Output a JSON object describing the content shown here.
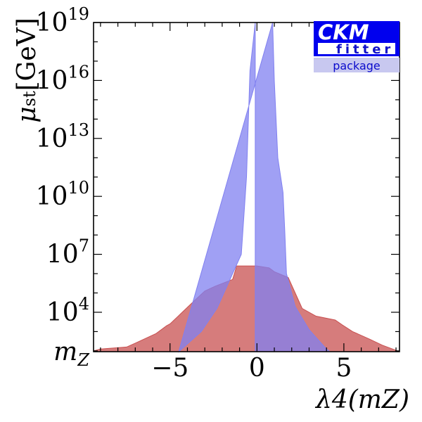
{
  "chart_data": {
    "type": "area",
    "title": "",
    "xlabel": "λ4(mZ)",
    "ylabel_main": "μ",
    "ylabel_sub": "st",
    "ylabel_unit": "[GeV]",
    "xlim": [
      -9.4,
      8.2
    ],
    "ylim": [
      1.96,
      19
    ],
    "y_scale": "log10",
    "y_is_log_exponent": true,
    "grid": false,
    "x_ticks": [
      {
        "value": -5,
        "label": "−5"
      },
      {
        "value": 0,
        "label": "0"
      },
      {
        "value": 5,
        "label": "5"
      }
    ],
    "y_ticks": [
      {
        "value": 1.96,
        "label": "m",
        "sub": "Z"
      },
      {
        "value": 4,
        "label": "10",
        "sup": "4"
      },
      {
        "value": 7,
        "label": "10",
        "sup": "7"
      },
      {
        "value": 10,
        "label": "10",
        "sup": "10"
      },
      {
        "value": 13,
        "label": "10",
        "sup": "13"
      },
      {
        "value": 16,
        "label": "10",
        "sup": "16"
      },
      {
        "value": 19,
        "label": "10",
        "sup": "19"
      }
    ],
    "series": [
      {
        "color": "#c85050",
        "opacity": 0.75,
        "points_left": [
          [
            -9.4,
            2.0
          ],
          [
            -9.0,
            2.1
          ],
          [
            -7.5,
            2.2
          ],
          [
            -7.0,
            2.4
          ],
          [
            -5.8,
            2.9
          ],
          [
            -5.2,
            3.3
          ],
          [
            -5.0,
            3.4
          ],
          [
            -3.6,
            4.6
          ],
          [
            -3.0,
            5.1
          ],
          [
            -2.4,
            5.35
          ],
          [
            -1.4,
            5.7
          ],
          [
            -1.2,
            6.3
          ],
          [
            -1.2,
            6.4
          ]
        ],
        "points_right": [
          [
            -1.2,
            6.4
          ],
          [
            0.0,
            6.4
          ],
          [
            0.7,
            6.3
          ],
          [
            1.0,
            6.1
          ],
          [
            1.8,
            5.8
          ],
          [
            2.2,
            5.0
          ],
          [
            2.6,
            4.2
          ],
          [
            3.4,
            3.8
          ],
          [
            4.5,
            3.6
          ],
          [
            4.9,
            3.35
          ],
          [
            5.5,
            3.0
          ],
          [
            6.5,
            2.6
          ],
          [
            7.2,
            2.3
          ],
          [
            7.8,
            2.1
          ],
          [
            8.2,
            1.96
          ]
        ]
      },
      {
        "color": "#8080f0",
        "opacity": 0.75,
        "points_left": [
          [
            -0.1,
            19.0
          ],
          [
            -0.4,
            16.5
          ],
          [
            -0.6,
            11.0
          ],
          [
            -0.9,
            7.0
          ],
          [
            -1.5,
            5.8
          ],
          [
            -2.3,
            4.2
          ],
          [
            -3.2,
            3.0
          ],
          [
            -4.5,
            1.96
          ]
        ],
        "points_right": [
          [
            0.9,
            19.0
          ],
          [
            1.0,
            16.0
          ],
          [
            1.2,
            12.0
          ],
          [
            1.5,
            10.2
          ],
          [
            1.6,
            8.2
          ],
          [
            1.7,
            6.0
          ],
          [
            2.2,
            4.3
          ],
          [
            3.0,
            3.1
          ],
          [
            3.8,
            2.3
          ],
          [
            4.0,
            2.1
          ],
          [
            4.2,
            1.96
          ]
        ]
      }
    ]
  },
  "logo": {
    "main": "CKM",
    "sub": "fitter",
    "pkg": "package",
    "accent": "#0000ee",
    "pkg_bg": "#c8c8f0"
  }
}
